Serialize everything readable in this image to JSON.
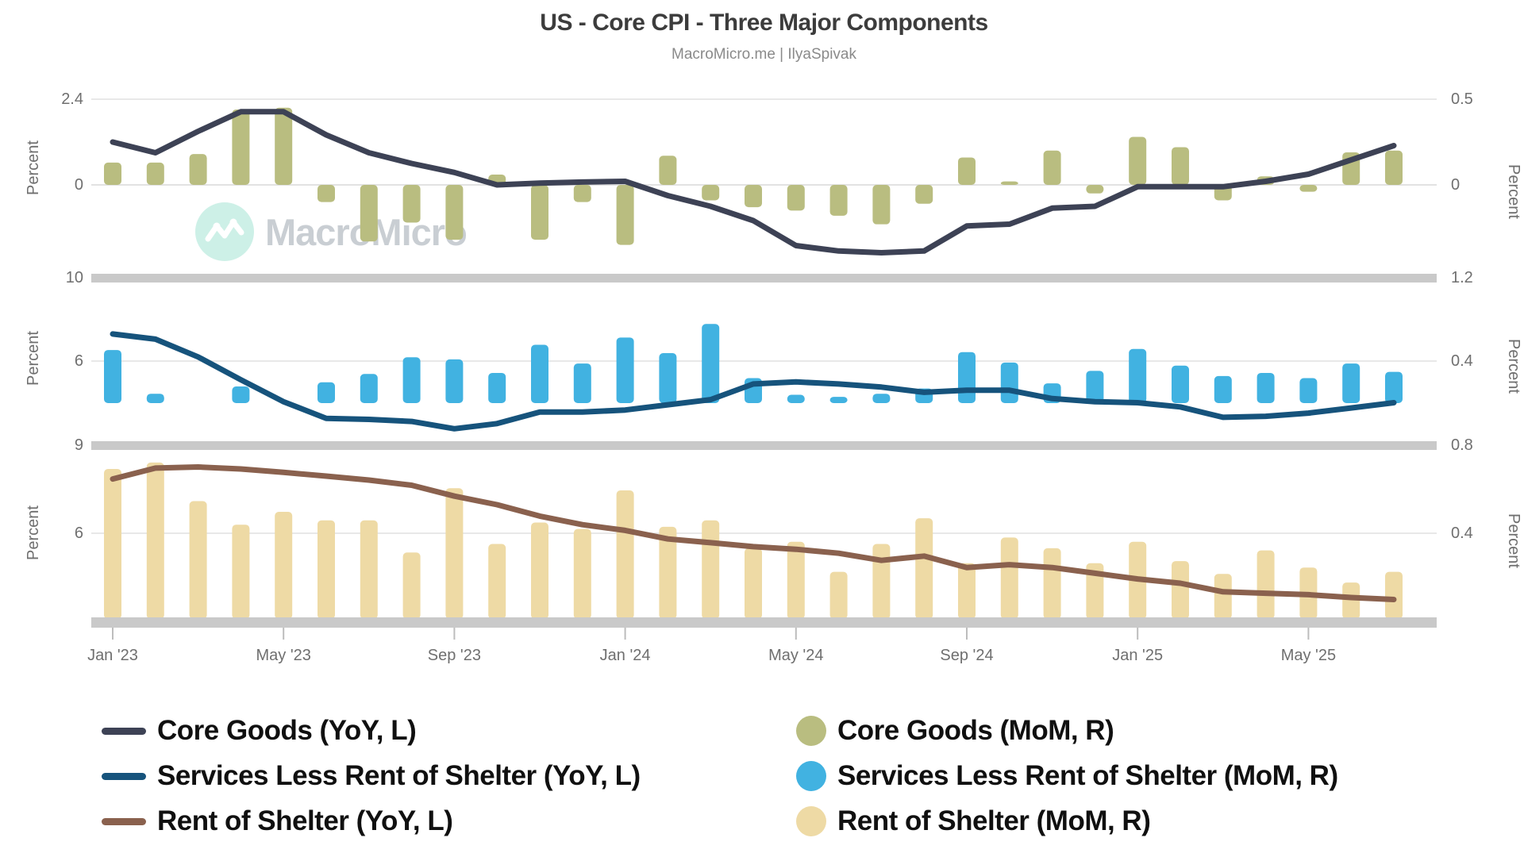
{
  "title": "US - Core CPI - Three Major Components",
  "subtitle": "MacroMicro.me | IlyaSpivak",
  "watermark_text": "MacroMicro",
  "axes": {
    "y_axis_label": "Percent",
    "p1_left": [
      "2.4",
      "0"
    ],
    "p1_right": [
      "0.5",
      "0"
    ],
    "p2_left": [
      "10",
      "6"
    ],
    "p2_right": [
      "1.2",
      "0.4"
    ],
    "p3_left": [
      "9",
      "6"
    ],
    "p3_right": [
      "0.8",
      "0.4"
    ]
  },
  "x_tick_labels": [
    "Jan '23",
    "May '23",
    "Sep '23",
    "Jan '24",
    "May '24",
    "Sep '24",
    "Jan '25",
    "May '25"
  ],
  "legend": {
    "left": [
      {
        "label": "Core Goods (YoY, L)",
        "color": "#3d4255",
        "swatch": "line"
      },
      {
        "label": "Services Less Rent of Shelter (YoY, L)",
        "color": "#16537c",
        "swatch": "line"
      },
      {
        "label": "Rent of Shelter (YoY, L)",
        "color": "#8a614e",
        "swatch": "line"
      }
    ],
    "right": [
      {
        "label": "Core Goods (MoM, R)",
        "color": "#b9bd80",
        "swatch": "circle"
      },
      {
        "label": "Services Less Rent of Shelter (MoM, R)",
        "color": "#41b2e1",
        "swatch": "circle"
      },
      {
        "label": "Rent of Shelter (MoM, R)",
        "color": "#eedaa5",
        "swatch": "circle"
      }
    ]
  },
  "colors": {
    "grid": "#e8e8e8",
    "zero_line": "#e2e2e2",
    "divider": "#c9c9c9",
    "axis_tick_mark": "#bdbdbd",
    "watermark_circle": "#cdf0e7",
    "watermark_text": "#c9ced3"
  },
  "chart_data": {
    "type": "multi-panel",
    "note": "Three stacked panels; each panel has a YoY line (left axis) and MoM bars (right axis). Units: percent.",
    "categories": [
      "Jan '23",
      "Feb '23",
      "Mar '23",
      "Apr '23",
      "May '23",
      "Jun '23",
      "Jul '23",
      "Aug '23",
      "Sep '23",
      "Oct '23",
      "Nov '23",
      "Dec '23",
      "Jan '24",
      "Feb '24",
      "Mar '24",
      "Apr '24",
      "May '24",
      "Jun '24",
      "Jul '24",
      "Aug '24",
      "Sep '24",
      "Oct '24",
      "Nov '24",
      "Dec '24",
      "Jan '25",
      "Feb '25",
      "Mar '25",
      "Apr '25",
      "May '25",
      "Jun '25",
      "Jul '25"
    ],
    "panels": [
      {
        "name": "Core Goods",
        "left_axis": {
          "label": "Percent",
          "ticks": [
            2.4,
            0
          ]
        },
        "right_axis": {
          "label": "Percent",
          "ticks": [
            0.5,
            0
          ]
        },
        "line_color": "#3d4255",
        "bar_color": "#b9bd80",
        "series": [
          {
            "name": "Core Goods (YoY, L)",
            "type": "line",
            "axis": "left",
            "values": [
              1.2,
              0.9,
              1.5,
              2.05,
              2.05,
              1.4,
              0.9,
              0.6,
              0.35,
              0.0,
              0.05,
              0.08,
              0.1,
              -0.3,
              -0.6,
              -1.0,
              -1.7,
              -1.85,
              -1.9,
              -1.85,
              -1.15,
              -1.1,
              -0.65,
              -0.6,
              -0.05,
              -0.05,
              -0.05,
              0.1,
              0.3,
              0.7,
              1.1
            ]
          },
          {
            "name": "Core Goods (MoM, R)",
            "type": "bar",
            "axis": "right",
            "values": [
              0.13,
              0.13,
              0.18,
              0.44,
              0.45,
              -0.1,
              -0.33,
              -0.22,
              -0.32,
              0.06,
              -0.32,
              -0.1,
              -0.35,
              0.17,
              -0.09,
              -0.13,
              -0.15,
              -0.18,
              -0.23,
              -0.11,
              0.16,
              0.02,
              0.2,
              -0.05,
              0.28,
              0.22,
              -0.09,
              0.05,
              -0.04,
              0.19,
              0.2
            ]
          }
        ]
      },
      {
        "name": "Services Less Rent of Shelter",
        "left_axis": {
          "label": "Percent",
          "ticks": [
            10,
            6
          ]
        },
        "right_axis": {
          "label": "Percent",
          "ticks": [
            1.2,
            0.4
          ]
        },
        "line_color": "#16537c",
        "bar_color": "#41b2e1",
        "series": [
          {
            "name": "Services Less Rent of Shelter (YoY, L)",
            "type": "line",
            "axis": "left",
            "values": [
              7.3,
              7.05,
              6.2,
              5.1,
              4.05,
              3.25,
              3.2,
              3.1,
              2.75,
              3.0,
              3.55,
              3.55,
              3.65,
              3.9,
              4.15,
              4.9,
              5.0,
              4.9,
              4.75,
              4.5,
              4.6,
              4.6,
              4.2,
              4.05,
              4.0,
              3.8,
              3.3,
              3.35,
              3.5,
              3.75,
              4.0
            ]
          },
          {
            "name": "Services Less Rent of Shelter (MoM, R)",
            "type": "bar",
            "axis": "right",
            "values": [
              0.51,
              0.09,
              0.0,
              0.16,
              0.0,
              0.2,
              0.28,
              0.44,
              0.42,
              0.29,
              0.56,
              0.38,
              0.63,
              0.48,
              0.76,
              0.24,
              0.08,
              0.06,
              0.09,
              0.14,
              0.49,
              0.39,
              0.19,
              0.31,
              0.52,
              0.36,
              0.26,
              0.29,
              0.24,
              0.38,
              0.3
            ]
          }
        ]
      },
      {
        "name": "Rent of Shelter",
        "left_axis": {
          "label": "Percent",
          "ticks": [
            9,
            6
          ]
        },
        "right_axis": {
          "label": "Percent",
          "ticks": [
            0.8,
            0.4
          ]
        },
        "line_color": "#8a614e",
        "bar_color": "#eedaa5",
        "series": [
          {
            "name": "Rent of Shelter (YoY, L)",
            "type": "line",
            "axis": "left",
            "values": [
              7.9,
              8.28,
              8.32,
              8.25,
              8.13,
              8.0,
              7.86,
              7.68,
              7.3,
              7.0,
              6.6,
              6.3,
              6.1,
              5.8,
              5.67,
              5.53,
              5.44,
              5.3,
              5.05,
              5.2,
              4.8,
              4.9,
              4.8,
              4.6,
              4.4,
              4.25,
              3.95,
              3.9,
              3.85,
              3.75,
              3.68
            ]
          },
          {
            "name": "Rent of Shelter (MoM, R)",
            "type": "bar",
            "axis": "right",
            "values": [
              0.7,
              0.73,
              0.55,
              0.44,
              0.5,
              0.46,
              0.46,
              0.31,
              0.61,
              0.35,
              0.45,
              0.42,
              0.6,
              0.43,
              0.46,
              0.33,
              0.36,
              0.22,
              0.35,
              0.47,
              0.26,
              0.38,
              0.33,
              0.26,
              0.36,
              0.27,
              0.21,
              0.32,
              0.24,
              0.17,
              0.22
            ]
          }
        ]
      }
    ]
  }
}
